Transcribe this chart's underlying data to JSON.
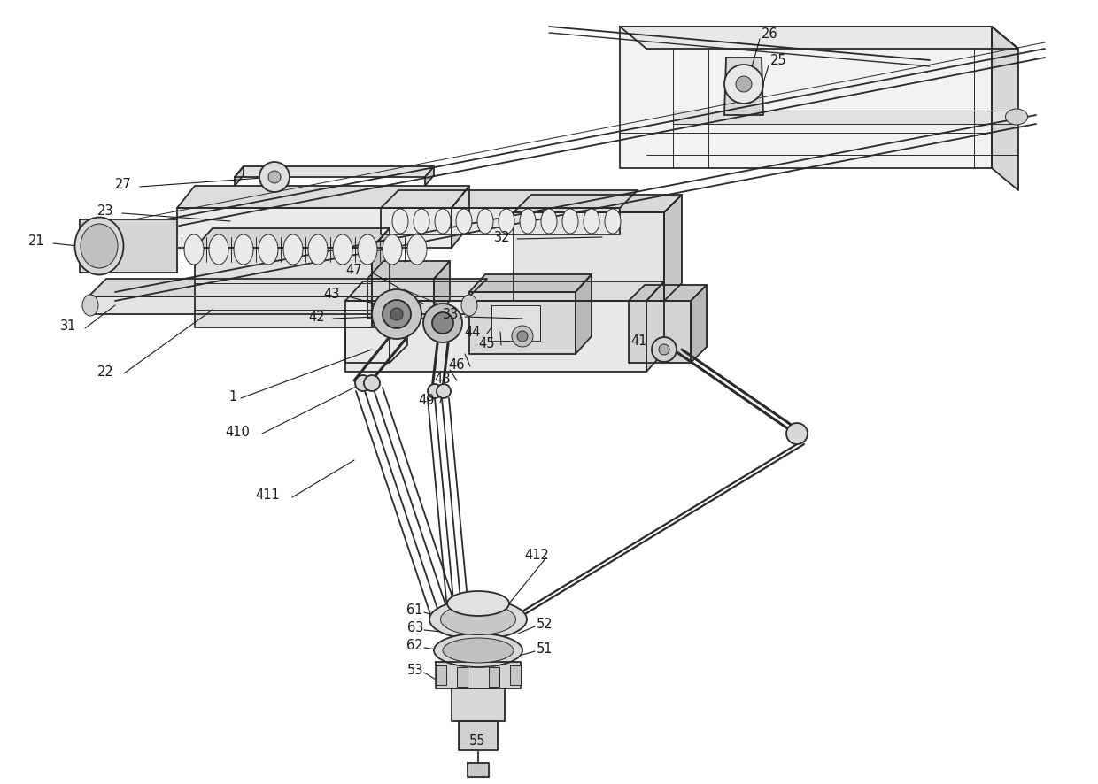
{
  "bg_color": "#ffffff",
  "line_color": "#2a2a2a",
  "label_color": "#1a1a1a",
  "label_fontsize": 10.5,
  "figsize": [
    12.4,
    8.86
  ],
  "dpi": 100,
  "lw_main": 1.3,
  "lw_thin": 0.7,
  "lw_thick": 2.2,
  "lw_med": 1.0
}
